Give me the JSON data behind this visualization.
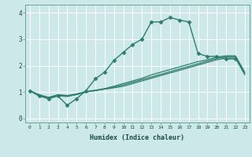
{
  "title": "",
  "xlabel": "Humidex (Indice chaleur)",
  "ylabel": "",
  "background_color": "#cce8e8",
  "grid_color": "#ffffff",
  "line_color": "#2e7d6e",
  "xlim": [
    -0.5,
    23.5
  ],
  "ylim": [
    -0.15,
    4.3
  ],
  "xticks": [
    0,
    1,
    2,
    3,
    4,
    5,
    6,
    7,
    8,
    9,
    10,
    11,
    12,
    13,
    14,
    15,
    16,
    17,
    18,
    19,
    20,
    21,
    22,
    23
  ],
  "yticks": [
    0,
    1,
    2,
    3,
    4
  ],
  "series": [
    {
      "x": [
        0,
        1,
        2,
        3,
        4,
        5,
        6,
        7,
        8,
        9,
        10,
        11,
        12,
        13,
        14,
        15,
        16,
        17,
        18,
        19,
        20,
        21,
        22
      ],
      "y": [
        1.05,
        0.85,
        0.75,
        0.85,
        0.5,
        0.75,
        1.05,
        1.5,
        1.75,
        2.2,
        2.5,
        2.8,
        3.0,
        3.65,
        3.65,
        3.82,
        3.72,
        3.65,
        2.45,
        2.35,
        2.35,
        2.25,
        2.25
      ],
      "marker": "D",
      "marker_size": 2.5,
      "lw": 1.0
    },
    {
      "x": [
        0,
        1,
        2,
        3,
        4,
        5,
        6,
        7,
        8,
        9,
        10,
        11,
        12,
        13,
        14,
        15,
        16,
        17,
        18,
        19,
        20,
        21,
        22,
        23
      ],
      "y": [
        1.05,
        0.88,
        0.78,
        0.88,
        0.85,
        0.9,
        1.0,
        1.05,
        1.12,
        1.18,
        1.27,
        1.37,
        1.47,
        1.57,
        1.67,
        1.77,
        1.87,
        1.97,
        2.07,
        2.17,
        2.27,
        2.33,
        2.33,
        1.7
      ],
      "marker": null,
      "lw": 0.9
    },
    {
      "x": [
        0,
        1,
        2,
        3,
        4,
        5,
        6,
        7,
        8,
        9,
        10,
        11,
        12,
        13,
        14,
        15,
        16,
        17,
        18,
        19,
        20,
        21,
        22,
        23
      ],
      "y": [
        1.05,
        0.9,
        0.8,
        0.9,
        0.87,
        0.93,
        1.02,
        1.07,
        1.13,
        1.22,
        1.32,
        1.42,
        1.52,
        1.65,
        1.75,
        1.85,
        1.95,
        2.05,
        2.15,
        2.22,
        2.32,
        2.37,
        2.37,
        1.75
      ],
      "marker": null,
      "lw": 0.9
    },
    {
      "x": [
        0,
        1,
        2,
        3,
        4,
        5,
        6,
        7,
        8,
        9,
        10,
        11,
        12,
        13,
        14,
        15,
        16,
        17,
        18,
        19,
        20,
        21,
        22,
        23
      ],
      "y": [
        1.05,
        0.86,
        0.76,
        0.86,
        0.83,
        0.91,
        1.01,
        1.06,
        1.11,
        1.16,
        1.22,
        1.32,
        1.42,
        1.52,
        1.62,
        1.72,
        1.82,
        1.92,
        2.02,
        2.12,
        2.22,
        2.28,
        2.28,
        1.65
      ],
      "marker": null,
      "lw": 0.9
    }
  ]
}
